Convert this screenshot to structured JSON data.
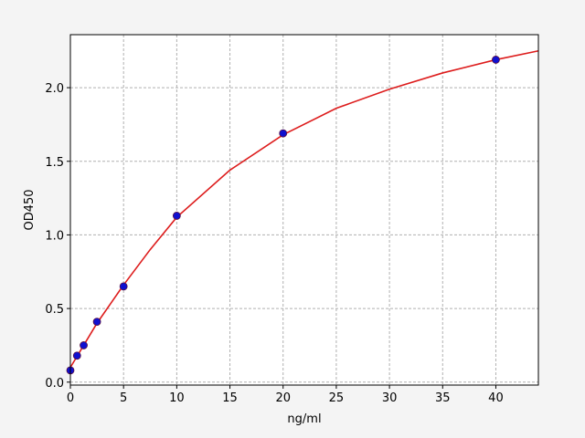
{
  "chart_data": {
    "type": "scatter",
    "x_label": "ng/ml",
    "y_label": "OD450",
    "xlim": [
      0,
      44
    ],
    "ylim": [
      -0.02,
      2.36
    ],
    "xticks": [
      0,
      5,
      10,
      15,
      20,
      25,
      30,
      35,
      40
    ],
    "yticks": [
      {
        "value": 0,
        "label": "0.0"
      },
      0.5,
      {
        "value": 1,
        "label": "1.0"
      },
      1.5,
      {
        "value": 2,
        "label": "2.0"
      }
    ],
    "grid": true,
    "series": [
      {
        "type": "line",
        "color": "#dd1c1c",
        "x": [
          0,
          1.25,
          2.5,
          5,
          7.5,
          10,
          15,
          20,
          25,
          30,
          35,
          40,
          44
        ],
        "values": [
          0.1,
          0.25,
          0.4,
          0.66,
          0.9,
          1.12,
          1.44,
          1.68,
          1.86,
          1.99,
          2.1,
          2.19,
          2.25
        ]
      },
      {
        "type": "scatter",
        "color": "#1010d0",
        "x": [
          0,
          0.625,
          1.25,
          2.5,
          5,
          10,
          20,
          40
        ],
        "values": [
          0.08,
          0.18,
          0.25,
          0.41,
          0.65,
          1.13,
          1.69,
          2.19
        ]
      }
    ]
  }
}
